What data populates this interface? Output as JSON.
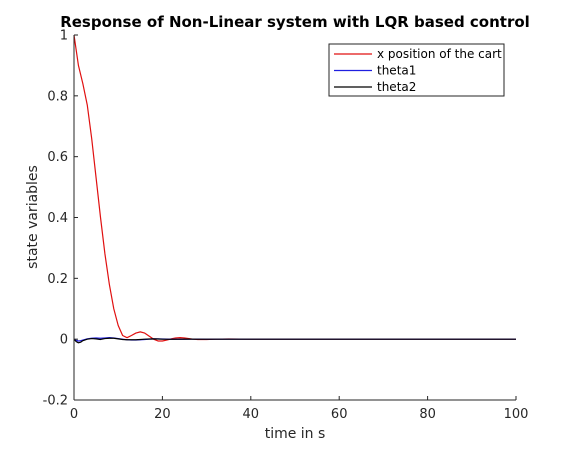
{
  "chart_data": {
    "type": "line",
    "title": "Response of Non-Linear system with LQR based control",
    "xlabel": "time in s",
    "ylabel": "state variables",
    "xlim": [
      0,
      100
    ],
    "ylim": [
      -0.2,
      1
    ],
    "xticks": [
      "0",
      "20",
      "40",
      "60",
      "80",
      "100"
    ],
    "yticks": [
      "-0.2",
      "0",
      "0.2",
      "0.4",
      "0.6",
      "0.8",
      "1"
    ],
    "grid": false,
    "legend_position": "top-right",
    "series": [
      {
        "name": "x position of the cart",
        "color": "#e01010",
        "x": [
          0,
          0.5,
          1,
          1.5,
          2,
          3,
          4,
          5,
          6,
          7,
          8,
          9,
          10,
          11,
          12,
          13,
          14,
          15,
          16,
          17,
          18,
          19,
          20,
          21,
          22,
          23,
          24,
          25,
          26,
          27,
          28,
          30,
          32,
          35,
          40,
          50,
          60,
          80,
          100
        ],
        "y": [
          1.0,
          0.95,
          0.9,
          0.87,
          0.84,
          0.77,
          0.66,
          0.53,
          0.4,
          0.28,
          0.18,
          0.1,
          0.045,
          0.012,
          0.005,
          0.012,
          0.02,
          0.024,
          0.02,
          0.01,
          0.0,
          -0.006,
          -0.006,
          -0.003,
          0.001,
          0.004,
          0.005,
          0.004,
          0.002,
          0.0,
          -0.001,
          -0.001,
          0.0,
          0.0005,
          0.0,
          0.0,
          0.0,
          0.0,
          0.0
        ]
      },
      {
        "name": "theta1",
        "color": "#1f1fe0",
        "x": [
          0,
          0.5,
          1,
          1.5,
          2,
          3,
          4,
          5,
          6,
          7,
          8,
          9,
          10,
          11,
          12,
          13,
          14,
          15,
          16,
          17,
          18,
          19,
          20,
          22,
          24,
          26,
          28,
          30,
          35,
          40,
          50,
          60,
          80,
          100
        ],
        "y": [
          0.0,
          -0.004,
          -0.006,
          -0.005,
          -0.003,
          0.001,
          0.003,
          0.004,
          0.003,
          0.004,
          0.005,
          0.004,
          0.002,
          0.0,
          -0.002,
          -0.003,
          -0.003,
          -0.002,
          -0.001,
          0.0,
          0.001,
          0.001,
          0.0005,
          0.0,
          -0.0005,
          0.0,
          0.0003,
          0.0,
          0.0,
          0.0,
          0.0,
          0.0,
          0.0,
          0.0
        ]
      },
      {
        "name": "theta2",
        "color": "#000000",
        "x": [
          0,
          0.5,
          1,
          1.5,
          2,
          3,
          4,
          5,
          6,
          7,
          8,
          9,
          10,
          11,
          12,
          13,
          14,
          15,
          16,
          17,
          18,
          19,
          20,
          22,
          24,
          26,
          28,
          30,
          35,
          40,
          50,
          60,
          80,
          100
        ],
        "y": [
          0.0,
          -0.008,
          -0.012,
          -0.01,
          -0.005,
          0.0,
          0.002,
          0.001,
          -0.001,
          0.002,
          0.003,
          0.003,
          0.001,
          -0.001,
          -0.002,
          -0.002,
          -0.002,
          -0.001,
          0.0,
          0.0005,
          0.001,
          0.0005,
          0.0,
          -0.0005,
          0.0,
          0.0002,
          0.0,
          0.0,
          0.0,
          0.0,
          0.0,
          0.0,
          0.0,
          0.0
        ]
      }
    ]
  }
}
